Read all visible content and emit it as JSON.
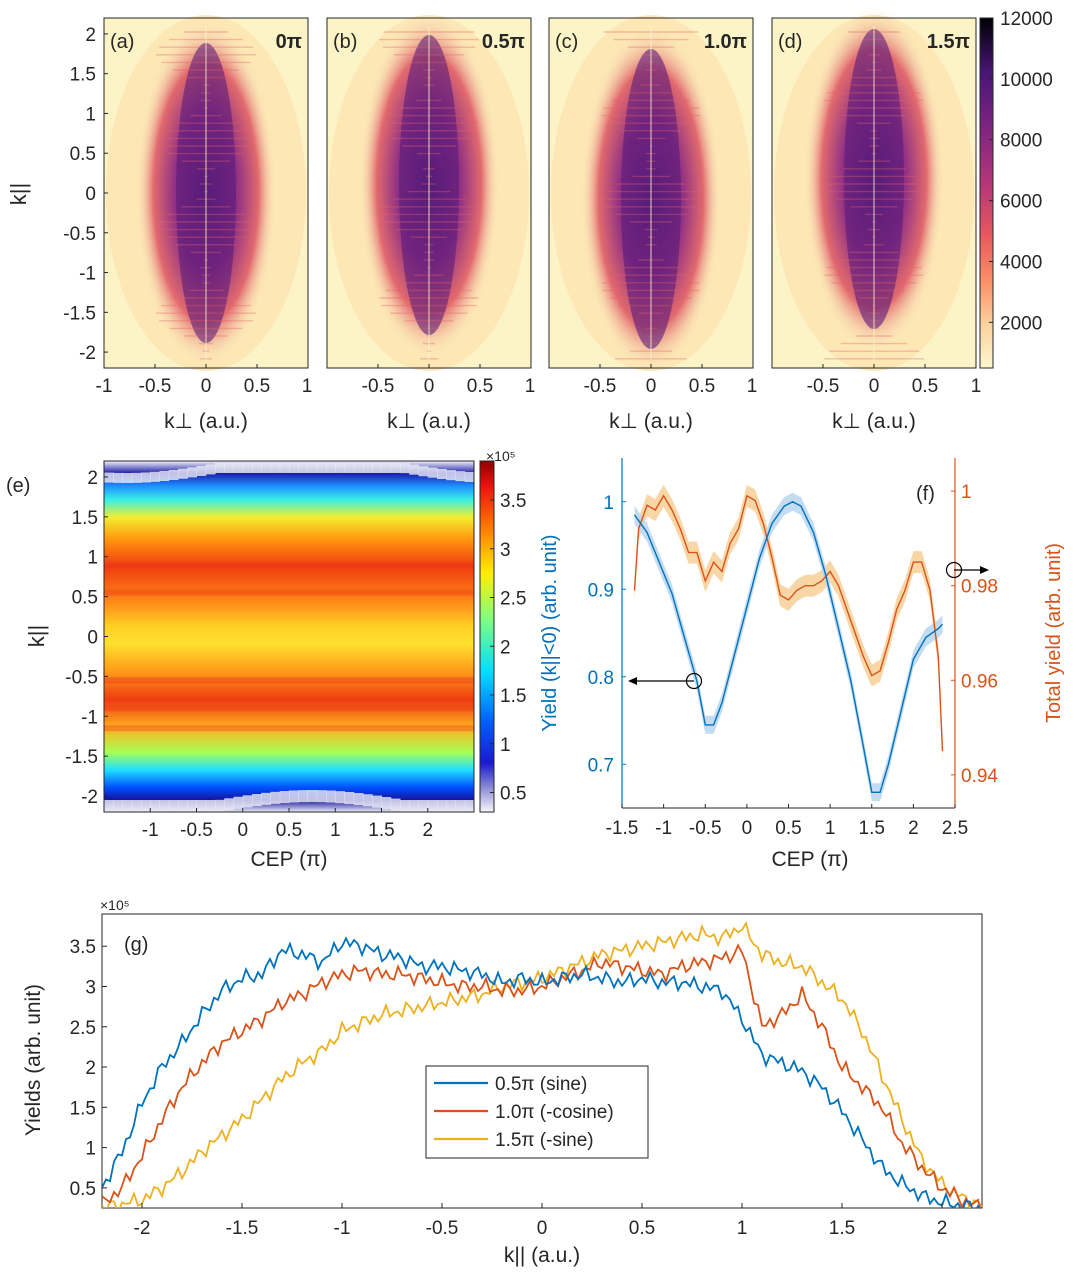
{
  "panels_ad": {
    "ylabel": "k||",
    "xlabel": "k⊥ (a.u.)",
    "yticks": [
      "2",
      "1.5",
      "1",
      "0.5",
      "0",
      "-0.5",
      "-1",
      "-1.5",
      "-2"
    ],
    "xticks": [
      "-1",
      "-0.5",
      "0",
      "0.5",
      "1"
    ],
    "items": [
      {
        "tag": "(a)",
        "cep": "0π"
      },
      {
        "tag": "(b)",
        "cep": "0.5π"
      },
      {
        "tag": "(c)",
        "cep": "1.0π"
      },
      {
        "tag": "(d)",
        "cep": "1.5π"
      }
    ],
    "colorbar_ticks": [
      "12000",
      "10000",
      "8000",
      "6000",
      "4000",
      "2000"
    ]
  },
  "panel_e": {
    "tag": "(e)",
    "ylabel": "k||",
    "xlabel": "CEP (π)",
    "yticks": [
      "2",
      "1.5",
      "1",
      "0.5",
      "0",
      "-0.5",
      "-1",
      "-1.5",
      "-2"
    ],
    "xticks": [
      "-1",
      "-0.5",
      "0",
      "0.5",
      "1",
      "1.5",
      "2"
    ],
    "colorbar_ticks": [
      "3.5",
      "3",
      "2.5",
      "2",
      "1.5",
      "1",
      "0.5"
    ],
    "colorbar_exp": "×10⁵"
  },
  "panel_f": {
    "tag": "(f)",
    "ylabel_left": "Yield (k||<0) (arb. unit)",
    "ylabel_right": "Total yield (arb. unit)",
    "xlabel": "CEP (π)",
    "yticks_left": [
      "1",
      "0.9",
      "0.8",
      "0.7"
    ],
    "yticks_right": [
      "1",
      "0.98",
      "0.96",
      "0.94"
    ],
    "xticks": [
      "-1.5",
      "-1",
      "-0.5",
      "0",
      "0.5",
      "1",
      "1.5",
      "2",
      "2.5"
    ]
  },
  "panel_g": {
    "tag": "(g)",
    "ylabel": "Yields (arb. unit)",
    "xlabel": "k|| (a.u.)",
    "yexp": "×10⁵",
    "yticks": [
      "3.5",
      "3",
      "2.5",
      "2",
      "1.5",
      "1",
      "0.5"
    ],
    "xticks": [
      "-2",
      "-1.5",
      "-1",
      "-0.5",
      "0",
      "0.5",
      "1",
      "1.5",
      "2"
    ],
    "legend": [
      "0.5π (sine)",
      "1.0π (-cosine)",
      "1.5π (-sine)"
    ]
  },
  "colors": {
    "blue": "#0072BD",
    "orange": "#D95319",
    "yellow": "#EDB120",
    "blue_band": "#b9d6ee",
    "orange_band": "#f7cf97"
  },
  "chart_data": [
    {
      "type": "heatmap",
      "panels": [
        "(a) 0π",
        "(b) 0.5π",
        "(c) 1.0π",
        "(d) 1.5π"
      ],
      "xlabel": "k⊥ (a.u.)",
      "ylabel": "k|| (a.u.)",
      "xlim": [
        -1,
        1
      ],
      "ylim": [
        -2.2,
        2.2
      ],
      "colorbar_range": [
        500,
        12000
      ],
      "colormap": "magma (reversed)"
    },
    {
      "type": "heatmap",
      "panel": "(e)",
      "xlabel": "CEP (π)",
      "ylabel": "k|| (a.u.)",
      "xlim": [
        -1.5,
        2.5
      ],
      "ylim": [
        -2.2,
        2.2
      ],
      "colorbar_range": [
        0.3,
        3.9
      ],
      "colorbar_scale": "x10^5",
      "colormap": "jet"
    },
    {
      "type": "line",
      "panel": "(f)",
      "xlabel": "CEP (π)",
      "xlim": [
        -1.5,
        2.5
      ],
      "series": [
        {
          "name": "Yield (k||<0)",
          "axis": "left",
          "ylim": [
            0.65,
            1.05
          ],
          "x": [
            -1.35,
            -1.2,
            -1.05,
            -0.9,
            -0.75,
            -0.6,
            -0.5,
            -0.4,
            -0.3,
            -0.15,
            0,
            0.15,
            0.3,
            0.45,
            0.55,
            0.65,
            0.8,
            0.95,
            1.1,
            1.25,
            1.4,
            1.5,
            1.6,
            1.7,
            1.85,
            2.0,
            2.15,
            2.3,
            2.35
          ],
          "y": [
            0.985,
            0.965,
            0.93,
            0.895,
            0.845,
            0.795,
            0.745,
            0.745,
            0.77,
            0.825,
            0.88,
            0.935,
            0.975,
            0.995,
            1.0,
            0.995,
            0.965,
            0.915,
            0.855,
            0.795,
            0.72,
            0.668,
            0.668,
            0.7,
            0.76,
            0.82,
            0.845,
            0.855,
            0.86
          ]
        },
        {
          "name": "Total yield",
          "axis": "right",
          "ylim": [
            0.933,
            1.007
          ],
          "x": [
            -1.35,
            -1.3,
            -1.2,
            -1.1,
            -1.0,
            -0.9,
            -0.8,
            -0.7,
            -0.6,
            -0.5,
            -0.4,
            -0.3,
            -0.2,
            -0.1,
            0,
            0.1,
            0.2,
            0.3,
            0.4,
            0.5,
            0.6,
            0.7,
            0.8,
            0.9,
            1.0,
            1.1,
            1.2,
            1.3,
            1.4,
            1.5,
            1.6,
            1.7,
            1.8,
            1.9,
            2.0,
            2.1,
            2.2,
            2.3,
            2.35
          ],
          "y": [
            0.979,
            0.992,
            0.997,
            0.996,
            0.999,
            0.996,
            0.992,
            0.987,
            0.987,
            0.981,
            0.985,
            0.983,
            0.989,
            0.992,
            0.999,
            0.998,
            0.993,
            0.986,
            0.978,
            0.977,
            0.979,
            0.98,
            0.98,
            0.981,
            0.983,
            0.98,
            0.975,
            0.97,
            0.965,
            0.961,
            0.962,
            0.968,
            0.975,
            0.979,
            0.985,
            0.985,
            0.979,
            0.965,
            0.945
          ]
        }
      ]
    },
    {
      "type": "line",
      "panel": "(g)",
      "xlabel": "k|| (a.u.)",
      "ylabel": "Yields (arb. unit)",
      "xlim": [
        -2.2,
        2.2
      ],
      "ylim": [
        0.25,
        3.9
      ],
      "yscale": "x10^5",
      "series": [
        {
          "name": "0.5π (sine)",
          "x": [
            -2.2,
            -2.1,
            -2.0,
            -1.9,
            -1.8,
            -1.7,
            -1.6,
            -1.5,
            -1.4,
            -1.3,
            -1.2,
            -1.1,
            -1.0,
            -0.9,
            -0.8,
            -0.7,
            -0.6,
            -0.5,
            -0.4,
            -0.3,
            -0.2,
            -0.1,
            0,
            0.1,
            0.2,
            0.3,
            0.4,
            0.5,
            0.6,
            0.7,
            0.8,
            0.9,
            1.0,
            1.1,
            1.2,
            1.3,
            1.4,
            1.5,
            1.6,
            1.7,
            1.8,
            1.9,
            2.0,
            2.1,
            2.2
          ],
          "y": [
            0.5,
            0.95,
            1.55,
            2.0,
            2.3,
            2.65,
            2.95,
            3.1,
            3.15,
            3.45,
            3.4,
            3.3,
            3.55,
            3.5,
            3.4,
            3.35,
            3.25,
            3.25,
            3.2,
            3.15,
            3.05,
            3.1,
            3.05,
            3.1,
            3.15,
            3.1,
            3.05,
            3.1,
            3.05,
            3.05,
            3.0,
            2.95,
            2.6,
            2.15,
            2.05,
            1.95,
            1.75,
            1.45,
            1.1,
            0.75,
            0.55,
            0.4,
            0.32,
            0.28,
            0.25
          ]
        },
        {
          "name": "1.0π (-cosine)",
          "x": [
            -2.2,
            -2.1,
            -2.0,
            -1.9,
            -1.8,
            -1.7,
            -1.6,
            -1.5,
            -1.4,
            -1.3,
            -1.2,
            -1.1,
            -1.0,
            -0.9,
            -0.8,
            -0.7,
            -0.6,
            -0.5,
            -0.4,
            -0.3,
            -0.2,
            -0.1,
            0,
            0.1,
            0.2,
            0.3,
            0.4,
            0.5,
            0.6,
            0.7,
            0.8,
            0.9,
            1.0,
            1.1,
            1.2,
            1.3,
            1.4,
            1.5,
            1.6,
            1.7,
            1.8,
            1.9,
            2.0,
            2.1,
            2.2
          ],
          "y": [
            0.3,
            0.5,
            0.9,
            1.35,
            1.75,
            2.05,
            2.3,
            2.45,
            2.6,
            2.8,
            2.9,
            3.05,
            3.15,
            3.2,
            3.15,
            3.15,
            3.1,
            3.05,
            3.0,
            3.0,
            2.95,
            2.95,
            3.0,
            3.1,
            3.2,
            3.3,
            3.25,
            3.2,
            3.15,
            3.25,
            3.3,
            3.35,
            3.45,
            2.5,
            2.65,
            2.9,
            2.5,
            2.0,
            1.75,
            1.5,
            1.05,
            0.75,
            0.5,
            0.35,
            0.25
          ]
        },
        {
          "name": "1.5π (-sine)",
          "x": [
            -2.2,
            -2.1,
            -2.0,
            -1.9,
            -1.8,
            -1.7,
            -1.6,
            -1.5,
            -1.4,
            -1.3,
            -1.2,
            -1.1,
            -1.0,
            -0.9,
            -0.8,
            -0.7,
            -0.6,
            -0.5,
            -0.4,
            -0.3,
            -0.2,
            -0.1,
            0,
            0.1,
            0.2,
            0.3,
            0.4,
            0.5,
            0.6,
            0.7,
            0.8,
            0.9,
            1.0,
            1.1,
            1.2,
            1.3,
            1.4,
            1.5,
            1.6,
            1.7,
            1.8,
            1.9,
            2.0,
            2.1,
            2.2
          ],
          "y": [
            0.25,
            0.3,
            0.35,
            0.5,
            0.7,
            0.95,
            1.15,
            1.35,
            1.6,
            1.85,
            2.05,
            2.2,
            2.45,
            2.55,
            2.65,
            2.7,
            2.75,
            2.8,
            2.85,
            2.9,
            3.0,
            3.05,
            3.1,
            3.2,
            3.3,
            3.4,
            3.45,
            3.5,
            3.55,
            3.6,
            3.65,
            3.6,
            3.75,
            3.4,
            3.3,
            3.25,
            3.05,
            2.85,
            2.45,
            1.9,
            1.35,
            0.85,
            0.55,
            0.38,
            0.28
          ]
        }
      ]
    }
  ]
}
